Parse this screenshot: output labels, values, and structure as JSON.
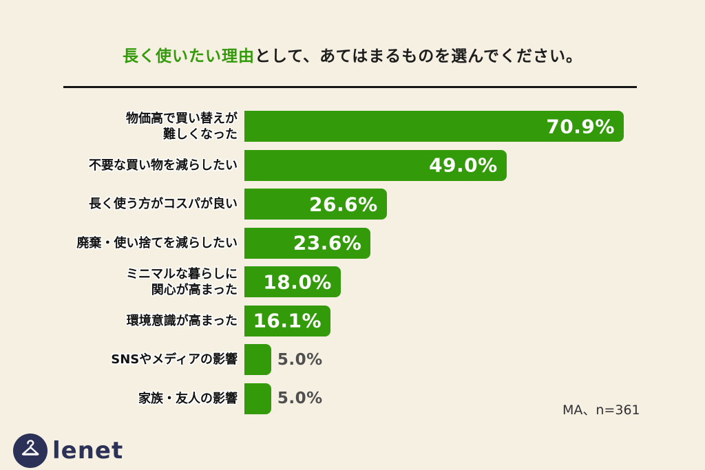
{
  "title": {
    "highlight": "長く使いたい理由",
    "rest": "として、あてはまるものを選んでください。"
  },
  "note": "MA、n=361",
  "logo": {
    "brand": "Lenet",
    "icon": "hanger-icon"
  },
  "colors": {
    "background": "#f6f0e2",
    "bar_green": "#339a0a",
    "title_accent_green": "#339a0a",
    "logo_navy": "#2c3157",
    "outside_value_gray": "#4f4f4f",
    "divider_black": "#151515"
  },
  "chart_data": {
    "type": "bar",
    "orientation": "horizontal",
    "title": "長く使いたい理由として、あてはまるものを選んでください。",
    "categories": [
      "物価高で買い替えが\n難しくなった",
      "不要な買い物を減らしたい",
      "長く使う方がコスパが良い",
      "廃棄・使い捨てを減らしたい",
      "ミニマルな暮らしに\n関心が高まった",
      "環境意識が高まった",
      "SNSやメディアの影響",
      "家族・友人の影響"
    ],
    "values": [
      70.9,
      49.0,
      26.6,
      23.6,
      18.0,
      16.1,
      5.0,
      5.0
    ],
    "value_labels": [
      "70.9%",
      "49.0%",
      "26.6%",
      "23.6%",
      "18.0%",
      "16.1%",
      "5.0%",
      "5.0%"
    ],
    "xlim": [
      0,
      75
    ],
    "unit": "%",
    "bar_color": "#339a0a",
    "grid": false,
    "legend": false,
    "note": "MA、n=361"
  }
}
